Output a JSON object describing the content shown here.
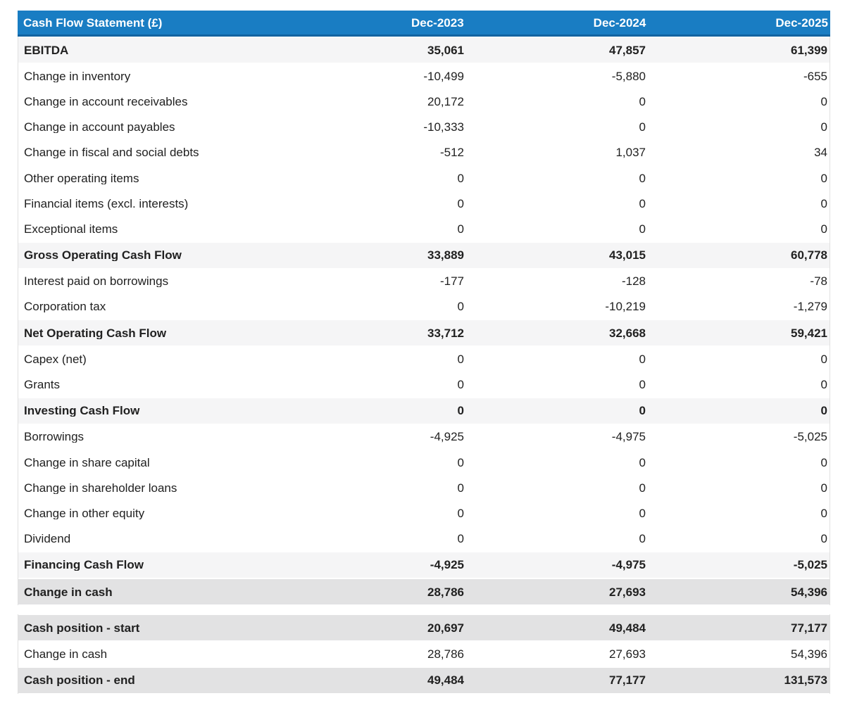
{
  "colors": {
    "header_bg": "#197dc3",
    "header_border": "#1263a0",
    "subtotal_bg": "#f5f5f6",
    "highlight_bg": "#e2e2e3",
    "table_border": "#e0e0e0",
    "text": "#212121",
    "header_text": "#ffffff"
  },
  "chart_data": {
    "type": "table",
    "title": "Cash Flow Statement (£)",
    "columns": [
      "Dec-2023",
      "Dec-2024",
      "Dec-2025"
    ],
    "sections": [
      {
        "name": "cash-flow",
        "rows": [
          {
            "label": "EBITDA",
            "values": [
              "35,061",
              "47,857",
              "61,399"
            ],
            "style": "subtotal"
          },
          {
            "label": "Change in inventory",
            "values": [
              "-10,499",
              "-5,880",
              "-655"
            ],
            "style": "normal"
          },
          {
            "label": "Change in account receivables",
            "values": [
              "20,172",
              "0",
              "0"
            ],
            "style": "normal"
          },
          {
            "label": "Change in account payables",
            "values": [
              "-10,333",
              "0",
              "0"
            ],
            "style": "normal"
          },
          {
            "label": "Change in fiscal and social debts",
            "values": [
              "-512",
              "1,037",
              "34"
            ],
            "style": "normal"
          },
          {
            "label": "Other operating items",
            "values": [
              "0",
              "0",
              "0"
            ],
            "style": "normal"
          },
          {
            "label": "Financial items (excl. interests)",
            "values": [
              "0",
              "0",
              "0"
            ],
            "style": "normal"
          },
          {
            "label": "Exceptional items",
            "values": [
              "0",
              "0",
              "0"
            ],
            "style": "normal"
          },
          {
            "label": "Gross Operating Cash Flow",
            "values": [
              "33,889",
              "43,015",
              "60,778"
            ],
            "style": "subtotal"
          },
          {
            "label": "Interest paid on borrowings",
            "values": [
              "-177",
              "-128",
              "-78"
            ],
            "style": "normal"
          },
          {
            "label": "Corporation tax",
            "values": [
              "0",
              "-10,219",
              "-1,279"
            ],
            "style": "normal"
          },
          {
            "label": "Net Operating Cash Flow",
            "values": [
              "33,712",
              "32,668",
              "59,421"
            ],
            "style": "subtotal"
          },
          {
            "label": "Capex (net)",
            "values": [
              "0",
              "0",
              "0"
            ],
            "style": "normal"
          },
          {
            "label": "Grants",
            "values": [
              "0",
              "0",
              "0"
            ],
            "style": "normal"
          },
          {
            "label": "Investing Cash Flow",
            "values": [
              "0",
              "0",
              "0"
            ],
            "style": "subtotal"
          },
          {
            "label": "Borrowings",
            "values": [
              "-4,925",
              "-4,975",
              "-5,025"
            ],
            "style": "normal"
          },
          {
            "label": "Change in share capital",
            "values": [
              "0",
              "0",
              "0"
            ],
            "style": "normal"
          },
          {
            "label": "Change in shareholder loans",
            "values": [
              "0",
              "0",
              "0"
            ],
            "style": "normal"
          },
          {
            "label": "Change in other equity",
            "values": [
              "0",
              "0",
              "0"
            ],
            "style": "normal"
          },
          {
            "label": "Dividend",
            "values": [
              "0",
              "0",
              "0"
            ],
            "style": "normal"
          },
          {
            "label": "Financing Cash Flow",
            "values": [
              "-4,925",
              "-4,975",
              "-5,025"
            ],
            "style": "subtotal"
          },
          {
            "label": "Change in cash",
            "values": [
              "28,786",
              "27,693",
              "54,396"
            ],
            "style": "highlight"
          }
        ]
      },
      {
        "name": "cash-position",
        "rows": [
          {
            "label": "Cash position - start",
            "values": [
              "20,697",
              "49,484",
              "77,177"
            ],
            "style": "highlight"
          },
          {
            "label": "Change in cash",
            "values": [
              "28,786",
              "27,693",
              "54,396"
            ],
            "style": "normal"
          },
          {
            "label": "Cash position - end",
            "values": [
              "49,484",
              "77,177",
              "131,573"
            ],
            "style": "highlight"
          }
        ]
      }
    ],
    "layout": {
      "legend": "none",
      "grid": "off",
      "value_alignment": "right"
    }
  }
}
